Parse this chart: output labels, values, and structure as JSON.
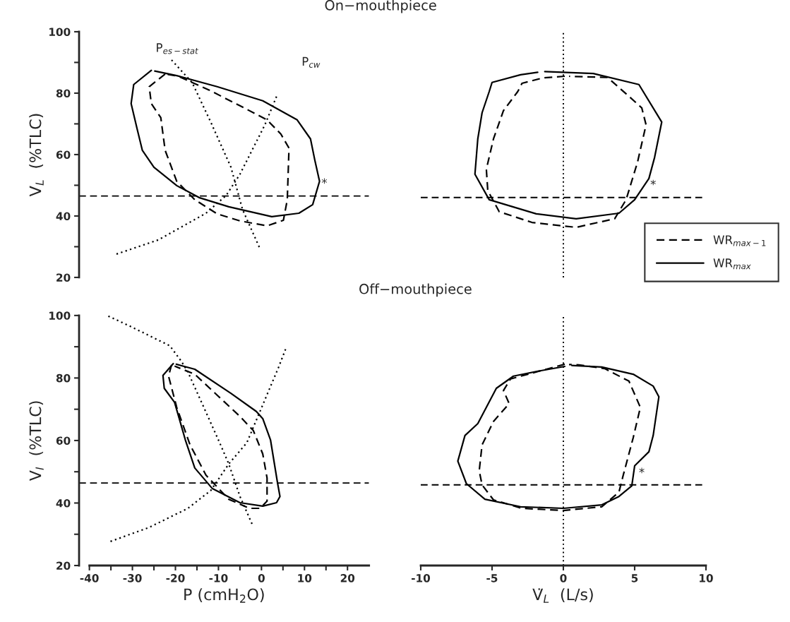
{
  "chart_data": [
    {
      "type": "line",
      "title": "On−mouthpiece",
      "ylabel": "V$_{L}$  (%TLC)",
      "xlim": [
        -42.4,
        25
      ],
      "ylim": [
        20,
        100
      ],
      "xticks": [
        -40,
        -30,
        -20,
        -10,
        0,
        10,
        20
      ],
      "yticks": [
        20,
        {
          "value": 30,
          "label": null
        },
        40,
        {
          "value": 50,
          "label": null
        },
        60,
        {
          "value": 70,
          "label": null
        },
        80,
        {
          "value": 90,
          "label": null
        },
        100
      ],
      "tick_labels": "y",
      "series": [
        {
          "color": "#000000",
          "line_style": "solid",
          "x": [
            -25.6,
            -29.7,
            -30.3,
            -28.9,
            -27.7,
            -25.0,
            -19.7,
            -14.5,
            -7.6,
            2.4,
            8.7,
            11.9,
            13.5,
            12.4,
            11.4,
            8.3,
            0.3,
            -10.3,
            -19.7,
            -24.8
          ],
          "values": [
            87.4,
            82.8,
            76.6,
            68.3,
            61.4,
            55.9,
            49.9,
            46.0,
            43.0,
            39.8,
            40.9,
            43.7,
            51.3,
            58.2,
            65.1,
            71.3,
            77.5,
            82.1,
            85.7,
            87.2
          ]
        },
        {
          "color": "#000000",
          "line_style": "dashed",
          "x": [
            -22.4,
            -26.1,
            -25.6,
            -23.4,
            -22.4,
            -19.7,
            -15.5,
            -10.3,
            -5.0,
            1.3,
            5.1,
            6.0,
            6.4,
            4.5,
            1.3,
            -5.0,
            -12.3,
            -19.3,
            -21.8
          ],
          "values": [
            86.2,
            82.1,
            76.6,
            72.0,
            61.4,
            51.3,
            45.3,
            40.7,
            38.4,
            36.8,
            38.6,
            45.3,
            62.1,
            66.7,
            71.3,
            75.9,
            81.1,
            85.5,
            86.1
          ]
        },
        {
          "color": "#000000",
          "line_style": "dotted",
          "x": [
            -20.9,
            -16.1,
            -11.8,
            -7.1,
            -4.4,
            -0.3
          ],
          "values": [
            90.8,
            83.4,
            70.6,
            55.9,
            42.1,
            29.2
          ]
        },
        {
          "color": "#000000",
          "line_style": "dotted",
          "x": [
            -33.7,
            -24.0,
            -12.9,
            -8.2,
            -5.0,
            0.8,
            3.5
          ],
          "values": [
            27.6,
            32.2,
            40.9,
            46.7,
            53.6,
            69.7,
            78.9
          ]
        }
      ],
      "ref_lines": [
        {
          "axis": "y",
          "value": 46.5,
          "color": "#000000",
          "line_style": "dashed"
        }
      ],
      "annotations": [
        "P$_{es−stat}$",
        "P$_{cw}$",
        "*"
      ]
    },
    {
      "type": "line",
      "xlim": [
        -10,
        10
      ],
      "ylim": [
        20,
        100
      ],
      "xticks": [
        -10,
        -5,
        0,
        5,
        10
      ],
      "yticks": [
        20,
        40,
        60,
        80,
        100
      ],
      "tick_labels": false,
      "legend": "right",
      "series": [
        {
          "name": "WR$_{max−1}$",
          "color": "#000000",
          "line_style": "dashed",
          "x": [
            0.1,
            -1.4,
            -2.9,
            -3.2,
            -4.2,
            -4.9,
            -5.4,
            -5.3,
            -4.5,
            -2.2,
            0.9,
            3.6,
            4.4,
            5.2,
            5.8,
            5.5,
            4.4,
            3.1,
            0.4
          ],
          "values": [
            85.5,
            85.0,
            83.2,
            80.5,
            74.3,
            65.1,
            55.2,
            48.3,
            41.4,
            37.9,
            36.3,
            39.1,
            45.3,
            57.5,
            69.7,
            75.2,
            79.8,
            85.1,
            85.5
          ]
        },
        {
          "name": "WR$_{max}$",
          "color": "#000000",
          "line_style": "solid",
          "x": [
            -1.3,
            2.1,
            5.3,
            6.9,
            6.4,
            6.0,
            5.0,
            3.9,
            0.9,
            -1.9,
            -5.2,
            -6.2,
            -6.0,
            -5.7,
            -5.2,
            -5.0,
            -3.0,
            -1.8
          ],
          "values": [
            87.0,
            86.4,
            82.8,
            70.6,
            59.1,
            52.2,
            45.3,
            40.9,
            39.1,
            40.7,
            45.3,
            53.6,
            65.1,
            73.6,
            80.5,
            83.5,
            86.0,
            86.8
          ]
        }
      ],
      "ref_lines": [
        {
          "axis": "y",
          "value": 46.0,
          "color": "#000000",
          "line_style": "dashed"
        },
        {
          "axis": "x",
          "value": 0,
          "color": "#000000",
          "line_style": "dotted"
        }
      ],
      "annotations": [
        "*"
      ]
    },
    {
      "type": "line",
      "title": "Off−mouthpiece",
      "xlabel": "P (cmH$_{2}$O)",
      "ylabel": "V$_{I}$  (%TLC)",
      "xlim": [
        -42.4,
        25
      ],
      "ylim": [
        20,
        100
      ],
      "xticks": [
        -40,
        {
          "value": -35,
          "label": null
        },
        -30,
        {
          "value": -25,
          "label": null
        },
        -20,
        {
          "value": -15,
          "label": null
        },
        -10,
        {
          "value": -5,
          "label": null
        },
        0,
        {
          "value": 5,
          "label": null
        },
        10,
        {
          "value": 15,
          "label": null
        },
        20
      ],
      "yticks": [
        20,
        {
          "value": 30,
          "label": null
        },
        40,
        {
          "value": 50,
          "label": null
        },
        60,
        {
          "value": 70,
          "label": null
        },
        80,
        {
          "value": 90,
          "label": null
        },
        100
      ],
      "series": [
        {
          "color": "#000000",
          "line_style": "solid",
          "x": [
            -20.5,
            -22.9,
            -22.6,
            -20.2,
            -17.7,
            -15.5,
            -11.4,
            -5.0,
            0.3,
            3.5,
            4.3,
            3.7,
            2.1,
            0.3,
            -1.2,
            -7.1,
            -15.5,
            -19.8
          ],
          "values": [
            84.6,
            80.8,
            76.7,
            72.2,
            60.2,
            51.2,
            44.6,
            40.1,
            39.0,
            40.1,
            42.1,
            46.7,
            60.2,
            67.0,
            69.3,
            75.1,
            82.8,
            84.4
          ]
        },
        {
          "color": "#000000",
          "line_style": "dashed",
          "x": [
            -20.9,
            -21.6,
            -19.7,
            -16.6,
            -12.9,
            -7.6,
            -2.8,
            -0.3,
            1.3,
            1.3,
            0.3,
            -1.9,
            -5.0,
            -10.3,
            -15.5,
            -20.2
          ],
          "values": [
            84.2,
            80.6,
            70.6,
            58.6,
            48.9,
            41.2,
            38.3,
            38.3,
            40.6,
            48.0,
            55.7,
            63.2,
            67.7,
            74.5,
            81.2,
            83.8
          ]
        },
        {
          "color": "#000000",
          "line_style": "dotted",
          "x": [
            -35.6,
            -30.3,
            -21.3,
            -18.6,
            -17.1,
            -13.4,
            -9.5,
            -7.6,
            -5.0,
            -2.0
          ],
          "values": [
            99.8,
            96.4,
            90.3,
            85.3,
            81.9,
            70.6,
            58.6,
            52.5,
            42.1,
            32.7
          ]
        },
        {
          "color": "#000000",
          "line_style": "dotted",
          "x": [
            -35.1,
            -26.1,
            -17.1,
            -11.8,
            -7.6,
            -3.4,
            4.0,
            5.6
          ],
          "values": [
            27.7,
            32.2,
            38.3,
            44.0,
            52.5,
            59.3,
            83.5,
            89.2
          ]
        }
      ],
      "ref_lines": [
        {
          "axis": "y",
          "value": 46.4,
          "color": "#000000",
          "line_style": "dashed"
        }
      ]
    },
    {
      "type": "line",
      "xlabel": "V̇$_{L}$  (L/s)",
      "xlim": [
        -10,
        10
      ],
      "ylim": [
        20,
        100
      ],
      "xticks": [
        -10,
        -5,
        0,
        5,
        10
      ],
      "yticks": [
        20,
        40,
        60,
        80,
        100
      ],
      "tick_labels": "x",
      "series": [
        {
          "color": "#000000",
          "line_style": "solid",
          "x": [
            0.6,
            2.7,
            4.9,
            6.3,
            6.7,
            6.3,
            6.0,
            5.0,
            4.8,
            3.9,
            2.7,
            0.0,
            -3.0,
            -5.5,
            -6.8,
            -7.4,
            -6.9,
            -6.0,
            -4.7,
            -3.5,
            -1.5,
            0.1
          ],
          "values": [
            84.0,
            83.5,
            81.2,
            77.4,
            74.0,
            61.6,
            56.4,
            51.9,
            45.5,
            42.1,
            39.4,
            38.3,
            38.8,
            41.2,
            46.2,
            53.4,
            61.6,
            65.4,
            76.7,
            80.6,
            82.4,
            83.7
          ]
        },
        {
          "color": "#000000",
          "line_style": "dashed",
          "x": [
            0.1,
            -1.2,
            -3.7,
            -4.2,
            -3.8,
            -4.9,
            -5.7,
            -5.9,
            -5.7,
            -4.9,
            -2.9,
            0.0,
            2.7,
            3.9,
            4.2,
            4.9,
            5.4,
            4.6,
            2.9,
            1.1,
            0.4
          ],
          "values": [
            84.4,
            82.8,
            79.7,
            76.0,
            71.8,
            66.1,
            58.6,
            50.3,
            45.8,
            41.0,
            38.3,
            37.6,
            38.8,
            43.5,
            48.9,
            60.9,
            70.6,
            79.0,
            83.0,
            84.2,
            84.3
          ]
        }
      ],
      "ref_lines": [
        {
          "axis": "y",
          "value": 45.8,
          "color": "#000000",
          "line_style": "dashed"
        },
        {
          "axis": "x",
          "value": 0,
          "color": "#000000",
          "line_style": "dotted"
        }
      ],
      "annotations": [
        "*"
      ]
    }
  ]
}
